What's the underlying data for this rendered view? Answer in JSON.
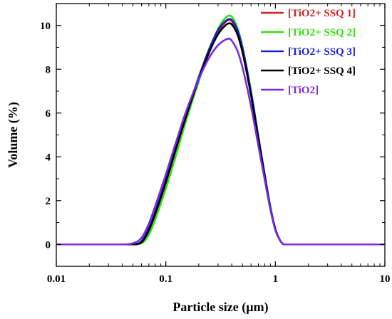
{
  "chart_data": {
    "type": "line",
    "title": "",
    "xlabel": "Particle size  (µm)",
    "ylabel": "Volume  (%)",
    "xscale": "log",
    "xlim": [
      0.01,
      10
    ],
    "ylim": [
      -1,
      11
    ],
    "x_ticks": [
      {
        "value": 0.01,
        "label": "0.01"
      },
      {
        "value": 0.1,
        "label": "0.1"
      },
      {
        "value": 1,
        "label": "1"
      },
      {
        "value": 10,
        "label": "10"
      }
    ],
    "y_ticks": [
      {
        "value": 0,
        "label": "0"
      },
      {
        "value": 2,
        "label": "2"
      },
      {
        "value": 4,
        "label": "4"
      },
      {
        "value": 6,
        "label": "6"
      },
      {
        "value": 8,
        "label": "8"
      },
      {
        "value": 10,
        "label": "10"
      }
    ],
    "grid": false,
    "legend_position": "top-right",
    "series": [
      {
        "name": "[TiO2+ SSQ 1]",
        "color": "#cc2222",
        "x": [
          0.01,
          0.05,
          0.06,
          0.07,
          0.08,
          0.1,
          0.12,
          0.15,
          0.2,
          0.25,
          0.3,
          0.35,
          0.38,
          0.4,
          0.45,
          0.5,
          0.6,
          0.7,
          0.8,
          0.9,
          1.0,
          1.1,
          1.2,
          1.5,
          10
        ],
        "y": [
          0,
          0,
          0.1,
          0.6,
          1.3,
          2.7,
          4.0,
          5.6,
          7.5,
          8.8,
          9.7,
          10.15,
          10.25,
          10.2,
          9.7,
          8.9,
          6.9,
          4.9,
          3.2,
          1.7,
          0.7,
          0.2,
          0,
          0,
          0
        ]
      },
      {
        "name": "[TiO2+ SSQ 2]",
        "color": "#33dd11",
        "x": [
          0.01,
          0.05,
          0.06,
          0.07,
          0.08,
          0.1,
          0.12,
          0.15,
          0.2,
          0.25,
          0.3,
          0.35,
          0.38,
          0.4,
          0.45,
          0.5,
          0.6,
          0.7,
          0.8,
          0.9,
          1.0,
          1.1,
          1.2,
          1.5,
          10
        ],
        "y": [
          0,
          0,
          0.05,
          0.45,
          1.15,
          2.55,
          3.85,
          5.5,
          7.45,
          8.85,
          9.85,
          10.35,
          10.45,
          10.4,
          9.9,
          9.05,
          7.0,
          4.95,
          3.2,
          1.75,
          0.7,
          0.2,
          0,
          0,
          0
        ]
      },
      {
        "name": "[TiO2+ SSQ 3]",
        "color": "#1a22cc",
        "x": [
          0.01,
          0.05,
          0.06,
          0.07,
          0.08,
          0.1,
          0.12,
          0.15,
          0.2,
          0.25,
          0.3,
          0.35,
          0.38,
          0.4,
          0.45,
          0.5,
          0.6,
          0.7,
          0.8,
          0.9,
          1.0,
          1.1,
          1.2,
          1.5,
          10
        ],
        "y": [
          0,
          0,
          0.15,
          0.75,
          1.5,
          2.95,
          4.25,
          5.8,
          7.65,
          8.95,
          9.8,
          10.2,
          10.3,
          10.25,
          9.8,
          9.0,
          6.95,
          4.9,
          3.15,
          1.7,
          0.7,
          0.2,
          0,
          0,
          0
        ]
      },
      {
        "name": "[TiO2+ SSQ 4]",
        "color": "#000000",
        "x": [
          0.01,
          0.05,
          0.06,
          0.07,
          0.08,
          0.1,
          0.12,
          0.15,
          0.2,
          0.25,
          0.3,
          0.35,
          0.38,
          0.4,
          0.45,
          0.5,
          0.6,
          0.7,
          0.8,
          0.9,
          1.0,
          1.1,
          1.2,
          1.5,
          10
        ],
        "y": [
          0,
          0,
          0.1,
          0.65,
          1.4,
          2.85,
          4.15,
          5.7,
          7.55,
          8.8,
          9.6,
          10.0,
          10.1,
          10.05,
          9.6,
          8.8,
          6.8,
          4.8,
          3.1,
          1.65,
          0.7,
          0.2,
          0,
          0,
          0
        ]
      },
      {
        "name": "[TiO2]",
        "color": "#7a2ae0",
        "x": [
          0.01,
          0.04,
          0.05,
          0.06,
          0.07,
          0.08,
          0.1,
          0.12,
          0.15,
          0.2,
          0.25,
          0.3,
          0.35,
          0.38,
          0.4,
          0.45,
          0.5,
          0.6,
          0.7,
          0.8,
          0.9,
          1.0,
          1.1,
          1.2,
          1.5,
          10
        ],
        "y": [
          0,
          0,
          0.05,
          0.3,
          0.95,
          1.75,
          3.2,
          4.45,
          5.95,
          7.55,
          8.55,
          9.1,
          9.35,
          9.4,
          9.3,
          8.85,
          8.1,
          6.3,
          4.5,
          2.95,
          1.6,
          0.65,
          0.2,
          0,
          0,
          0
        ]
      }
    ]
  }
}
